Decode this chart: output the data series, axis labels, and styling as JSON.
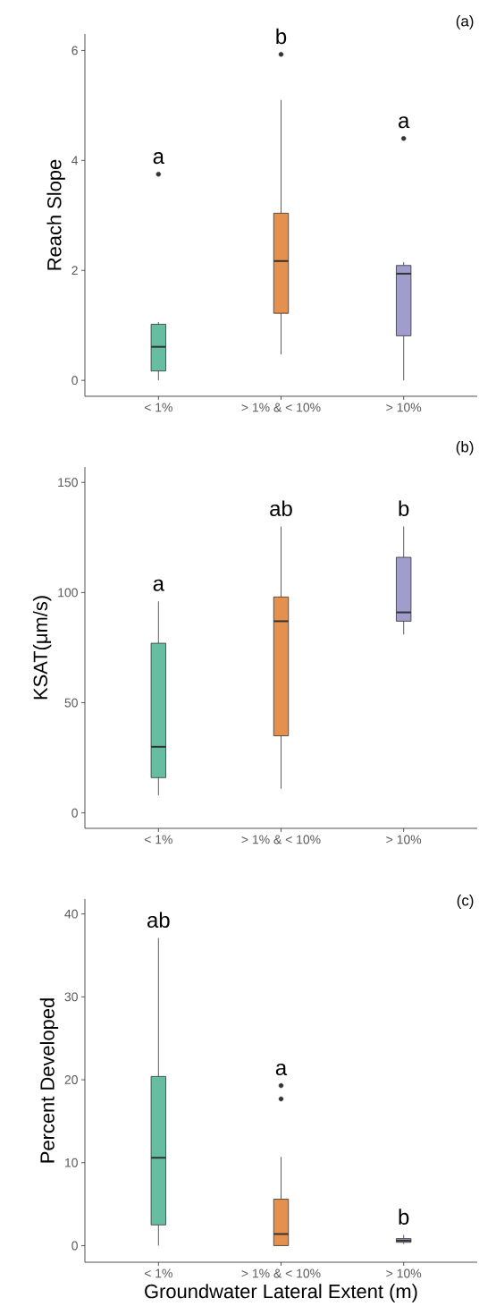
{
  "chart_data": [
    {
      "type": "box",
      "ylabel": "Reach Slope",
      "categories": [
        "< 1%",
        "> 1% & < 10%",
        "> 10%"
      ],
      "colors": [
        "#66bda1",
        "#e5904d",
        "#a09ccb"
      ],
      "boxes": [
        {
          "low": 0,
          "q1": 0.17,
          "median": 0.61,
          "q3": 1.02,
          "high": 1.06,
          "outliers": [
            3.75
          ]
        },
        {
          "low": 0.47,
          "q1": 1.22,
          "median": 2.17,
          "q3": 3.04,
          "high": 5.1,
          "outliers": [
            5.93
          ]
        },
        {
          "low": 0,
          "q1": 0.81,
          "median": 1.94,
          "q3": 2.09,
          "high": 2.15,
          "outliers": [
            4.4
          ]
        }
      ],
      "ylim": [
        -0.29,
        6.3
      ],
      "yticks": [
        0,
        2,
        4,
        6
      ],
      "grid": false,
      "annotations": [
        "(a)",
        "a",
        "b",
        "a"
      ]
    },
    {
      "type": "box",
      "ylabel": "KSAT(μm/s)",
      "categories": [
        "< 1%",
        "> 1% & < 10%",
        "> 10%"
      ],
      "colors": [
        "#66bda1",
        "#e5904d",
        "#a09ccb"
      ],
      "boxes": [
        {
          "low": 8,
          "q1": 16,
          "median": 30,
          "q3": 77,
          "high": 96
        },
        {
          "low": 11,
          "q1": 35,
          "median": 87,
          "q3": 98,
          "high": 130
        },
        {
          "low": 81,
          "q1": 87,
          "median": 91,
          "q3": 116,
          "high": 130
        }
      ],
      "ylim": [
        -7,
        157
      ],
      "yticks": [
        0,
        50,
        100,
        150
      ],
      "grid": false,
      "annotations": [
        "(b)",
        "a",
        "ab",
        "b"
      ]
    },
    {
      "type": "box",
      "xlabel": "Groundwater Lateral Extent (m)",
      "ylabel": "Percent Developed",
      "categories": [
        "< 1%",
        "> 1% & < 10%",
        "> 10%"
      ],
      "colors": [
        "#66bda1",
        "#e5904d",
        "#a09ccb"
      ],
      "boxes": [
        {
          "low": 0,
          "q1": 2.5,
          "median": 10.6,
          "q3": 20.4,
          "high": 37.1
        },
        {
          "low": 0,
          "q1": 0,
          "median": 1.4,
          "q3": 5.6,
          "high": 10.7,
          "outliers": [
            17.7,
            19.3
          ]
        },
        {
          "low": 0.2,
          "q1": 0.4,
          "median": 0.6,
          "q3": 0.85,
          "high": 1.3
        }
      ],
      "ylim": [
        -2,
        41.8
      ],
      "yticks": [
        0,
        10,
        20,
        30,
        40
      ],
      "grid": false,
      "annotations": [
        "(c)",
        "ab",
        "a",
        "b"
      ]
    }
  ]
}
